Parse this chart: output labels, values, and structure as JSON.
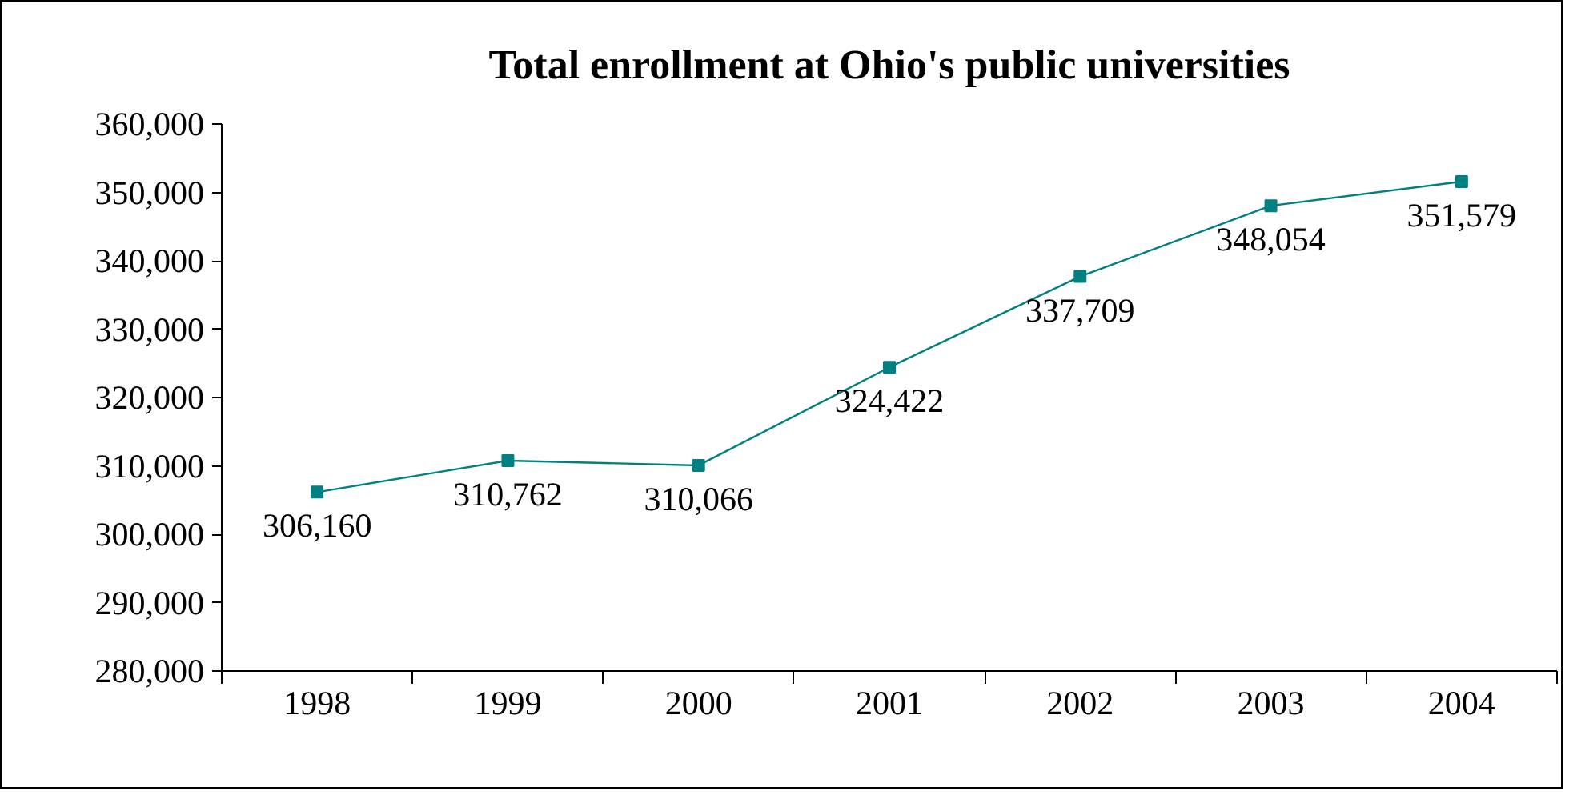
{
  "chart_data": {
    "type": "line",
    "title": "Total enrollment at Ohio's public universities",
    "categories": [
      "1998",
      "1999",
      "2000",
      "2001",
      "2002",
      "2003",
      "2004"
    ],
    "series": [
      {
        "color": "#008080",
        "values": [
          306160,
          310762,
          310066,
          324422,
          337709,
          348054,
          351579
        ]
      }
    ],
    "value_labels": [
      "306,160",
      "310,762",
      "310,066",
      "324,422",
      "337,709",
      "348,054",
      "351,579"
    ],
    "ylim": [
      280000,
      360000
    ],
    "yticks": [
      {
        "value": 280000,
        "label": "280,000"
      },
      {
        "value": 290000,
        "label": "290,000"
      },
      {
        "value": 300000,
        "label": "300,000"
      },
      {
        "value": 310000,
        "label": "310,000"
      },
      {
        "value": 320000,
        "label": "320,000"
      },
      {
        "value": 330000,
        "label": "330,000"
      },
      {
        "value": 340000,
        "label": "340,000"
      },
      {
        "value": 350000,
        "label": "350,000"
      },
      {
        "value": 360000,
        "label": "360,000"
      }
    ],
    "marker": "square",
    "line_style": "solid",
    "grid": false
  }
}
